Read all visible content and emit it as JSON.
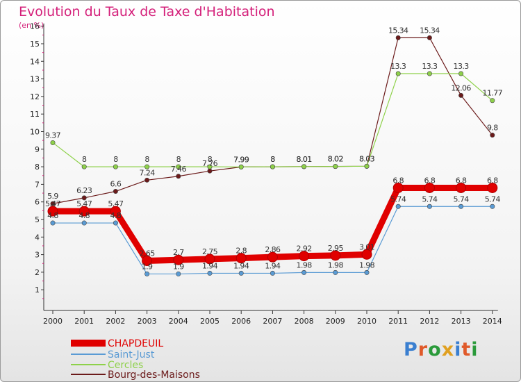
{
  "title": "Evolution du Taux de Taxe d'Habitation",
  "subtitle": "(en %)",
  "logo": "Proxiti",
  "chart_data": {
    "type": "line",
    "title": "Evolution du Taux de Taxe d'Habitation",
    "subtitle": "(en %)",
    "x": [
      2000,
      2001,
      2002,
      2003,
      2004,
      2005,
      2006,
      2007,
      2008,
      2009,
      2010,
      2011,
      2012,
      2013,
      2014
    ],
    "ylim": [
      0,
      16
    ],
    "yticks": [
      1,
      2,
      3,
      4,
      5,
      6,
      7,
      8,
      9,
      10,
      11,
      12,
      13,
      14,
      15,
      16
    ],
    "grid": false,
    "legend": "bottom-left",
    "series": [
      {
        "name": "CHAPDEUIL",
        "color": "#e00000",
        "values": [
          5.47,
          5.47,
          5.47,
          2.65,
          2.7,
          2.75,
          2.8,
          2.86,
          2.92,
          2.95,
          3.01,
          6.8,
          6.8,
          6.8,
          6.8
        ],
        "labels": [
          "5.47",
          "5.47",
          "5.47",
          "2.65",
          "2.7",
          "2.75",
          "2.8",
          "2.86",
          "2.92",
          "2.95",
          "3.01",
          "6.8",
          "6.8",
          "6.8",
          "6.8"
        ]
      },
      {
        "name": "Saint-Just",
        "color": "#5a9bd4",
        "values": [
          4.8,
          4.8,
          4.8,
          1.9,
          1.9,
          1.94,
          1.94,
          1.94,
          1.98,
          1.98,
          1.98,
          5.74,
          5.74,
          5.74,
          5.74
        ],
        "labels": [
          "4.8",
          "4.8",
          "4.8",
          "1.9",
          "1.9",
          "1.94",
          "1.94",
          "1.94",
          "1.98",
          "1.98",
          "1.98",
          "5.74",
          "5.74",
          "5.74",
          "5.74"
        ]
      },
      {
        "name": "Cercles",
        "color": "#8ed14a",
        "values": [
          9.37,
          8,
          8,
          8,
          8,
          8,
          7.99,
          8,
          8.01,
          8.02,
          8.03,
          13.3,
          13.3,
          13.3,
          11.77
        ],
        "labels": [
          "9.37",
          "8",
          "8",
          "8",
          "8",
          "8",
          "7.99",
          "8",
          "8.01",
          "8.02",
          "8.03",
          "13.3",
          "13.3",
          "13.3",
          "11.77"
        ]
      },
      {
        "name": "Bourg-des-Maisons",
        "color": "#6b1a1a",
        "values": [
          5.9,
          6.23,
          6.6,
          7.24,
          7.46,
          7.76,
          7.99,
          8,
          8.01,
          8.02,
          8.03,
          15.34,
          15.34,
          12.06,
          9.8
        ],
        "labels": [
          "5.9",
          "6.23",
          "6.6",
          "7.24",
          "7.46",
          "7.76",
          "7.99",
          "8",
          "8.01",
          "8.02",
          "8.03",
          "15.34",
          "15.34",
          "12.06",
          "9.8"
        ]
      }
    ]
  }
}
